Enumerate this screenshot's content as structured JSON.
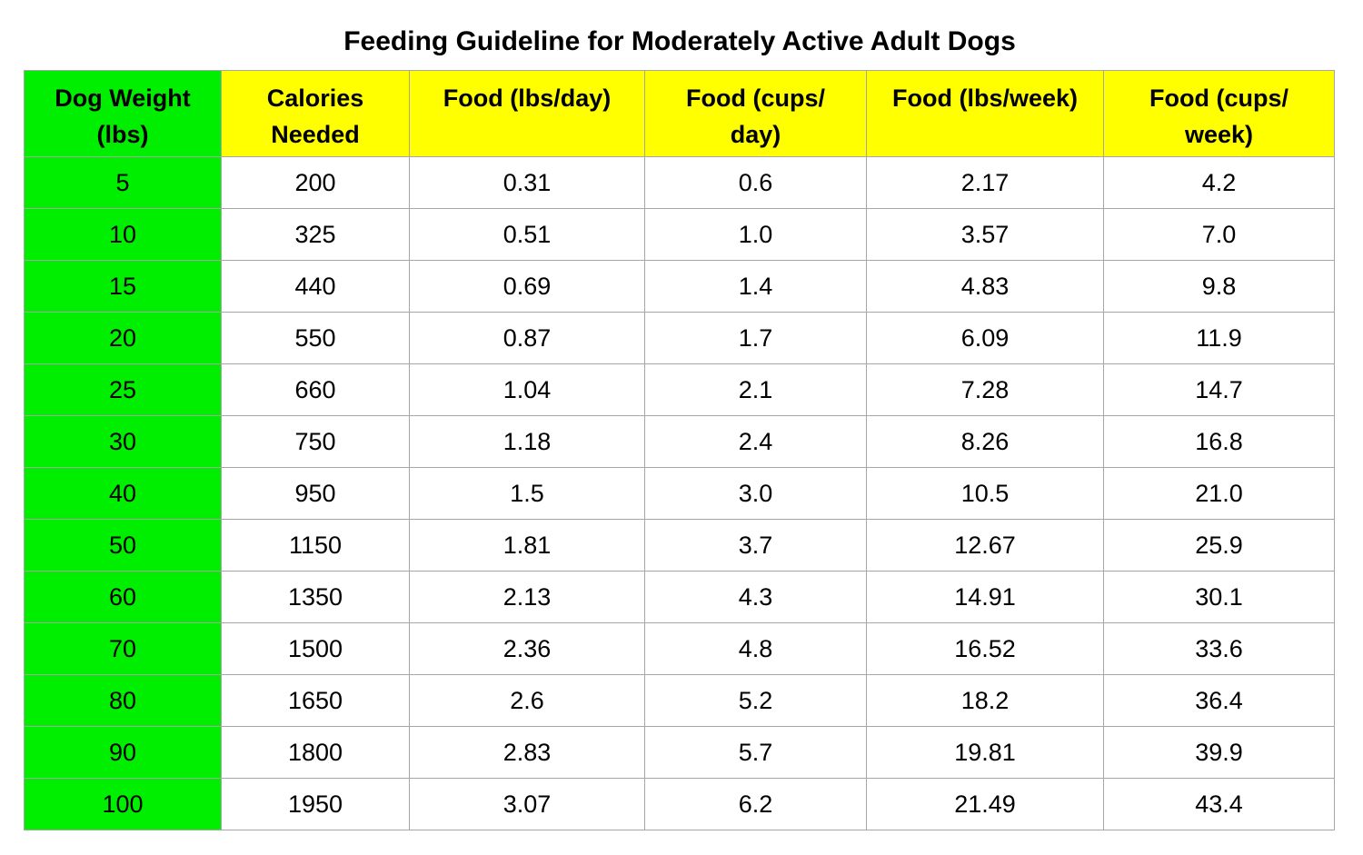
{
  "title": "Feeding Guideline for Moderately Active Adult Dogs",
  "colors": {
    "weight_column": "#00ee00",
    "header_row": "#ffff00",
    "border": "#a6a6a6"
  },
  "table": {
    "headers": [
      [
        "Dog Weight",
        "(lbs)"
      ],
      [
        "Calories",
        "Needed"
      ],
      [
        "Food (lbs/day)"
      ],
      [
        "Food (cups/",
        "day)"
      ],
      [
        "Food (lbs/week)"
      ],
      [
        "Food (cups/",
        "week)"
      ]
    ],
    "rows": [
      [
        "5",
        "200",
        "0.31",
        "0.6",
        "2.17",
        "4.2"
      ],
      [
        "10",
        "325",
        "0.51",
        "1.0",
        "3.57",
        "7.0"
      ],
      [
        "15",
        "440",
        "0.69",
        "1.4",
        "4.83",
        "9.8"
      ],
      [
        "20",
        "550",
        "0.87",
        "1.7",
        "6.09",
        "11.9"
      ],
      [
        "25",
        "660",
        "1.04",
        "2.1",
        "7.28",
        "14.7"
      ],
      [
        "30",
        "750",
        "1.18",
        "2.4",
        "8.26",
        "16.8"
      ],
      [
        "40",
        "950",
        "1.5",
        "3.0",
        "10.5",
        "21.0"
      ],
      [
        "50",
        "1150",
        "1.81",
        "3.7",
        "12.67",
        "25.9"
      ],
      [
        "60",
        "1350",
        "2.13",
        "4.3",
        "14.91",
        "30.1"
      ],
      [
        "70",
        "1500",
        "2.36",
        "4.8",
        "16.52",
        "33.6"
      ],
      [
        "80",
        "1650",
        "2.6",
        "5.2",
        "18.2",
        "36.4"
      ],
      [
        "90",
        "1800",
        "2.83",
        "5.7",
        "19.81",
        "39.9"
      ],
      [
        "100",
        "1950",
        "3.07",
        "6.2",
        "21.49",
        "43.4"
      ]
    ]
  }
}
